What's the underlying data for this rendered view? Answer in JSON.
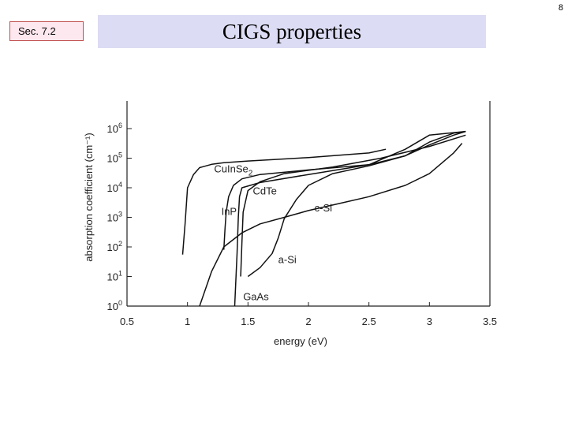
{
  "page_number": "8",
  "section_tag": "Sec. 7.2",
  "title": "CIGS properties",
  "chart_data": {
    "type": "line",
    "xlabel": "energy (eV)",
    "ylabel": "absorption coefficient (cm⁻¹)",
    "xlim": [
      0.5,
      3.5
    ],
    "ylim_log10": [
      0,
      6
    ],
    "x_ticks": [
      "0.5",
      "1",
      "1.5",
      "2",
      "2.5",
      "3",
      "3.5"
    ],
    "y_ticks": [
      {
        "base": "10",
        "exp": "0"
      },
      {
        "base": "10",
        "exp": "1"
      },
      {
        "base": "10",
        "exp": "2"
      },
      {
        "base": "10",
        "exp": "3"
      },
      {
        "base": "10",
        "exp": "4"
      },
      {
        "base": "10",
        "exp": "5"
      },
      {
        "base": "10",
        "exp": "6"
      }
    ],
    "grid": false,
    "series": [
      {
        "name": "CuInSe2",
        "points": [
          [
            0.96,
            55.0
          ],
          [
            0.98,
            600.0
          ],
          [
            1.0,
            10000.0
          ],
          [
            1.05,
            28000.0
          ],
          [
            1.1,
            48000.0
          ],
          [
            1.2,
            62000.0
          ],
          [
            1.3,
            70000.0
          ],
          [
            1.5,
            80000.0
          ],
          [
            2.0,
            105000.0
          ],
          [
            2.5,
            150000.0
          ],
          [
            2.64,
            200000.0
          ]
        ]
      },
      {
        "name": "InP",
        "points": [
          [
            1.3,
            80.0
          ],
          [
            1.31,
            400.0
          ],
          [
            1.32,
            1500.0
          ],
          [
            1.34,
            5000.0
          ],
          [
            1.38,
            12000.0
          ],
          [
            1.45,
            20000.0
          ],
          [
            1.6,
            28000.0
          ],
          [
            2.0,
            40000.0
          ],
          [
            2.5,
            60000.0
          ],
          [
            2.8,
            120000.0
          ],
          [
            3.0,
            350000.0
          ],
          [
            3.2,
            700000.0
          ],
          [
            3.3,
            800000.0
          ]
        ]
      },
      {
        "name": "CdTe",
        "points": [
          [
            1.44,
            10.0
          ],
          [
            1.45,
            150.0
          ],
          [
            1.46,
            1500.0
          ],
          [
            1.5,
            8000.0
          ],
          [
            1.6,
            16000.0
          ],
          [
            1.8,
            30000.0
          ],
          [
            2.2,
            50000.0
          ],
          [
            2.6,
            100000.0
          ],
          [
            3.0,
            250000.0
          ],
          [
            3.3,
            600000.0
          ]
        ]
      },
      {
        "name": "c-Si",
        "points": [
          [
            1.1,
            1.0
          ],
          [
            1.2,
            15.0
          ],
          [
            1.3,
            100.0
          ],
          [
            1.45,
            300.0
          ],
          [
            1.6,
            600.0
          ],
          [
            1.8,
            1000.0
          ],
          [
            2.0,
            1700.0
          ],
          [
            2.2,
            2600.0
          ],
          [
            2.5,
            5000.0
          ],
          [
            2.8,
            12000.0
          ],
          [
            3.0,
            30000.0
          ],
          [
            3.2,
            150000.0
          ],
          [
            3.27,
            320000.0
          ]
        ]
      },
      {
        "name": "a-Si",
        "points": [
          [
            1.5,
            10.0
          ],
          [
            1.6,
            20.0
          ],
          [
            1.7,
            60.0
          ],
          [
            1.75,
            200.0
          ],
          [
            1.8,
            900.0
          ],
          [
            1.9,
            4000.0
          ],
          [
            2.0,
            12000.0
          ],
          [
            2.2,
            30000.0
          ],
          [
            2.5,
            55000.0
          ],
          [
            2.8,
            120000.0
          ],
          [
            3.0,
            280000.0
          ],
          [
            3.2,
            600000.0
          ],
          [
            3.3,
            800000.0
          ]
        ]
      },
      {
        "name": "GaAs",
        "points": [
          [
            1.39,
            1.0
          ],
          [
            1.41,
            60.0
          ],
          [
            1.42,
            1000.0
          ],
          [
            1.43,
            5000.0
          ],
          [
            1.45,
            10000.0
          ],
          [
            1.6,
            15000.0
          ],
          [
            2.0,
            28000.0
          ],
          [
            2.5,
            60000.0
          ],
          [
            2.8,
            200000.0
          ],
          [
            3.0,
            600000.0
          ],
          [
            3.3,
            800000.0
          ]
        ]
      }
    ],
    "annotations": {
      "CuInSe2": {
        "main": "CuInSe",
        "sub": "2"
      },
      "InP": "InP",
      "CdTe": "CdTe",
      "c-Si": "c-Si",
      "a-Si": "a-Si",
      "GaAs": "GaAs"
    }
  }
}
